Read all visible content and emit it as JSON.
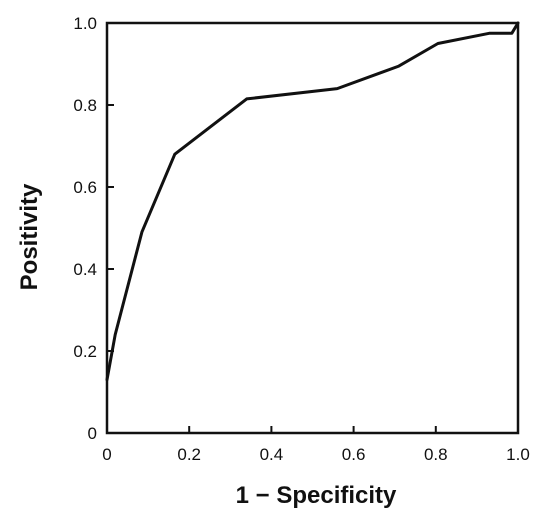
{
  "chart_data": {
    "type": "line",
    "title": "",
    "xlabel": "1 − Specificity",
    "ylabel": "Positivity",
    "xlim": [
      0,
      1
    ],
    "ylim": [
      0,
      1
    ],
    "x_ticks": [
      "0",
      "0.2",
      "0.4",
      "0.6",
      "0.8",
      "1.0"
    ],
    "y_ticks": [
      "0",
      "0.2",
      "0.4",
      "0.6",
      "0.8",
      "1.0"
    ],
    "grid": false,
    "legend": "none",
    "line_color": "#111111",
    "series": [
      {
        "x": [
          0,
          0.02,
          0.085,
          0.165,
          0.34,
          0.56,
          0.71,
          0.805,
          0.93,
          0.985,
          1.0
        ],
        "y": [
          0.13,
          0.24,
          0.49,
          0.68,
          0.815,
          0.84,
          0.895,
          0.95,
          0.975,
          0.975,
          1.0
        ]
      }
    ]
  }
}
